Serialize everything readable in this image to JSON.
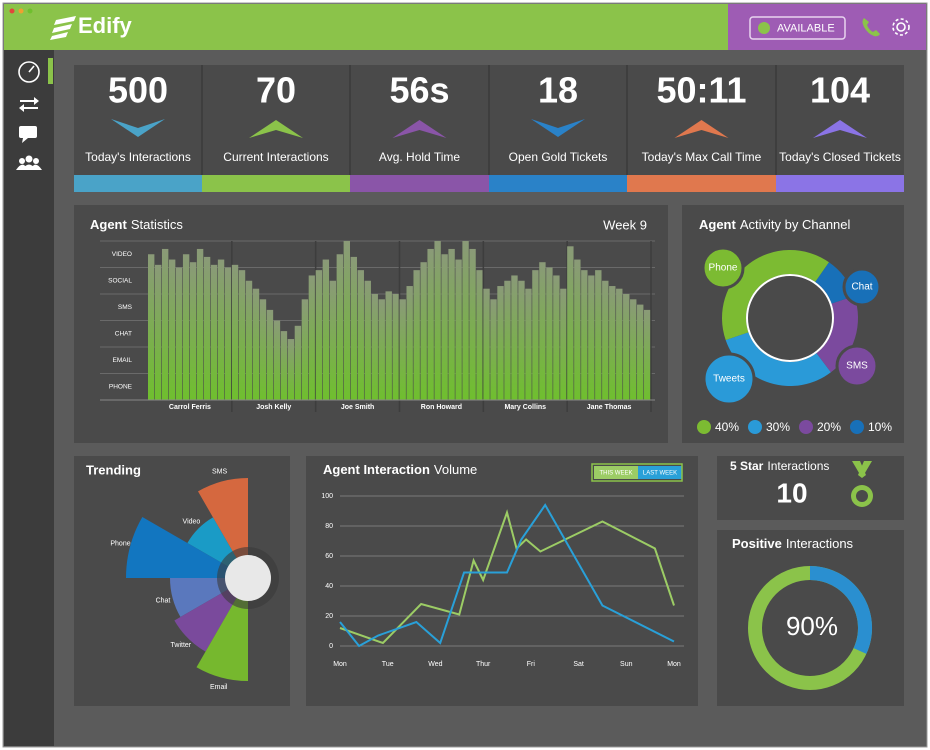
{
  "header": {
    "logo": "Edify",
    "status": "AVAILABLE"
  },
  "kpis": [
    {
      "value": "500",
      "label": "Today's Interactions",
      "color": "#4aa3c8",
      "trend": "down"
    },
    {
      "value": "70",
      "label": "Current Interactions",
      "color": "#8bc34a",
      "trend": "up"
    },
    {
      "value": "56s",
      "label": "Avg. Hold Time",
      "color": "#8a55a8",
      "trend": "up"
    },
    {
      "value": "18",
      "label": "Open Gold Tickets",
      "color": "#2a82c8",
      "trend": "down"
    },
    {
      "value": "50:11",
      "label": "Today's Max Call Time",
      "color": "#e0784e",
      "trend": "up"
    },
    {
      "value": "104",
      "label": "Today's Closed Tickets",
      "color": "#8b74e6",
      "trend": "up"
    }
  ],
  "five_star": {
    "title_bold": "5 Star",
    "title": "Interactions",
    "value": "10"
  },
  "positive": {
    "title_bold": "Positive",
    "title": "Interactions",
    "value": "90%"
  },
  "chart_data": [
    {
      "type": "bar",
      "title_bold": "Agent",
      "title": "Statistics",
      "subtitle": "Week 9",
      "color": "#6fbf2e",
      "groups": [
        {
          "name": "Carrol Ferris",
          "values": [
            5.5,
            5.1,
            5.7,
            5.3,
            5.0,
            5.5,
            5.2,
            5.7,
            5.4,
            5.1,
            5.3,
            5.0
          ]
        },
        {
          "name": "Josh Kelly",
          "values": [
            5.1,
            4.9,
            4.5,
            4.2,
            3.8,
            3.4,
            3.0,
            2.6,
            2.3,
            2.8,
            3.8,
            4.7
          ]
        },
        {
          "name": "Joe Smith",
          "values": [
            4.9,
            5.3,
            4.5,
            5.5,
            6.0,
            5.4,
            4.9,
            4.5,
            4.0,
            3.8,
            4.1,
            4.0
          ]
        },
        {
          "name": "Ron Howard",
          "values": [
            3.8,
            4.3,
            4.9,
            5.2,
            5.7,
            6.0,
            5.5,
            5.7,
            5.3,
            6.0,
            5.7,
            4.9
          ]
        },
        {
          "name": "Mary Collins",
          "values": [
            4.2,
            3.8,
            4.3,
            4.5,
            4.7,
            4.5,
            4.2,
            4.9,
            5.2,
            5.0,
            4.7,
            4.2
          ]
        },
        {
          "name": "Jane Thomas",
          "values": [
            5.8,
            5.3,
            4.9,
            4.7,
            4.9,
            4.5,
            4.3,
            4.2,
            4.0,
            3.8,
            3.6,
            3.4
          ]
        }
      ],
      "ylim": [
        0,
        6
      ],
      "yticks": [
        {
          "value": 5.5,
          "label": "VIDEO"
        },
        {
          "value": 4.5,
          "label": "SOCIAL"
        },
        {
          "value": 3.5,
          "label": "SMS"
        },
        {
          "value": 2.5,
          "label": "CHAT"
        },
        {
          "value": 1.5,
          "label": "EMAIL"
        },
        {
          "value": 0.5,
          "label": "PHONE"
        }
      ]
    },
    {
      "type": "donut",
      "title_bold": "Agent",
      "title": "Activity by Channel",
      "categories": [
        "Phone",
        "Tweets",
        "SMS",
        "Chat"
      ],
      "values": [
        40,
        30,
        20,
        10
      ],
      "value_labels": [
        "40%",
        "30%",
        "20%",
        "10%"
      ],
      "colors": [
        "#7cbb32",
        "#2a9ad8",
        "#7b4a9e",
        "#1870b8"
      ]
    },
    {
      "type": "rose",
      "title": "Trending",
      "categories": [
        "SMS",
        "Video",
        "Phone",
        "Chat",
        "Twitter",
        "Email"
      ],
      "values": [
        100,
        70,
        122,
        78,
        85,
        103
      ],
      "colors": [
        "#d5683f",
        "#1a9bc6",
        "#1276c0",
        "#5a78bd",
        "#7a4a9c",
        "#76b82e"
      ],
      "rlim": [
        0,
        122
      ]
    },
    {
      "type": "line",
      "title_bold": "Agent Interaction",
      "title": "Volume",
      "series": [
        {
          "name": "THIS WEEK",
          "color": "#9ccc65",
          "x": [
            0,
            0.9,
            1.7,
            2.5,
            2.8,
            3.0,
            3.5,
            3.7,
            3.9,
            4.2,
            5.5,
            6.6,
            7
          ],
          "values": [
            12,
            2,
            28,
            21,
            57,
            44,
            89,
            65,
            71,
            63,
            83,
            65,
            27
          ]
        },
        {
          "name": "LAST WEEK",
          "color": "#29a0d8",
          "x": [
            0,
            0.4,
            0.8,
            1.6,
            2.1,
            2.6,
            3.1,
            3.5,
            3.8,
            4.3,
            5.5,
            7
          ],
          "values": [
            16,
            0,
            7,
            16,
            2,
            49,
            49,
            49,
            71,
            94,
            27,
            3
          ]
        }
      ],
      "xlim": [
        0,
        7
      ],
      "xticks": [
        {
          "value": 0,
          "label": "Mon"
        },
        {
          "value": 1,
          "label": "Tue"
        },
        {
          "value": 2,
          "label": "Wed"
        },
        {
          "value": 3,
          "label": "Thur"
        },
        {
          "value": 4,
          "label": "Fri"
        },
        {
          "value": 5,
          "label": "Sat"
        },
        {
          "value": 6,
          "label": "Sun"
        },
        {
          "value": 7,
          "label": "Mon"
        }
      ],
      "ylim": [
        0,
        100
      ],
      "yticks": [
        0,
        20,
        40,
        60,
        80,
        100
      ],
      "grid": true
    }
  ]
}
